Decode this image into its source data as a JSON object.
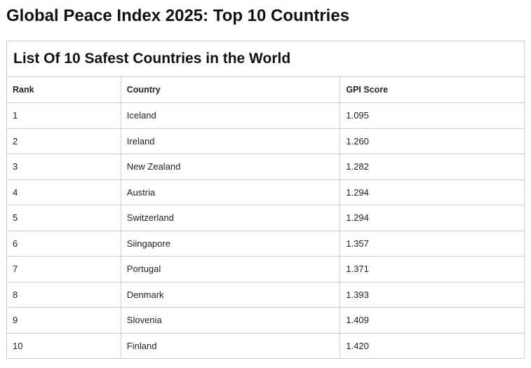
{
  "header": {
    "title": "Global Peace Index 2025: Top 10 Countries"
  },
  "table": {
    "caption": "List Of 10 Safest Countries in the World",
    "columns": [
      "Rank",
      "Country",
      "GPI Score"
    ],
    "rows": [
      [
        "1",
        "Iceland",
        "1.095"
      ],
      [
        "2",
        "Ireland",
        "1.260"
      ],
      [
        "3",
        "New Zealand",
        "1.282"
      ],
      [
        "4",
        "Austria",
        "1.294"
      ],
      [
        "5",
        "Switzerland",
        "1.294"
      ],
      [
        "6",
        "Siingapore",
        "1.357"
      ],
      [
        "7",
        "Portugal",
        "1.371"
      ],
      [
        "8",
        "Denmark",
        "1.393"
      ],
      [
        "9",
        "Slovenia",
        "1.409"
      ],
      [
        "10",
        "Finland",
        "1.420"
      ]
    ]
  }
}
